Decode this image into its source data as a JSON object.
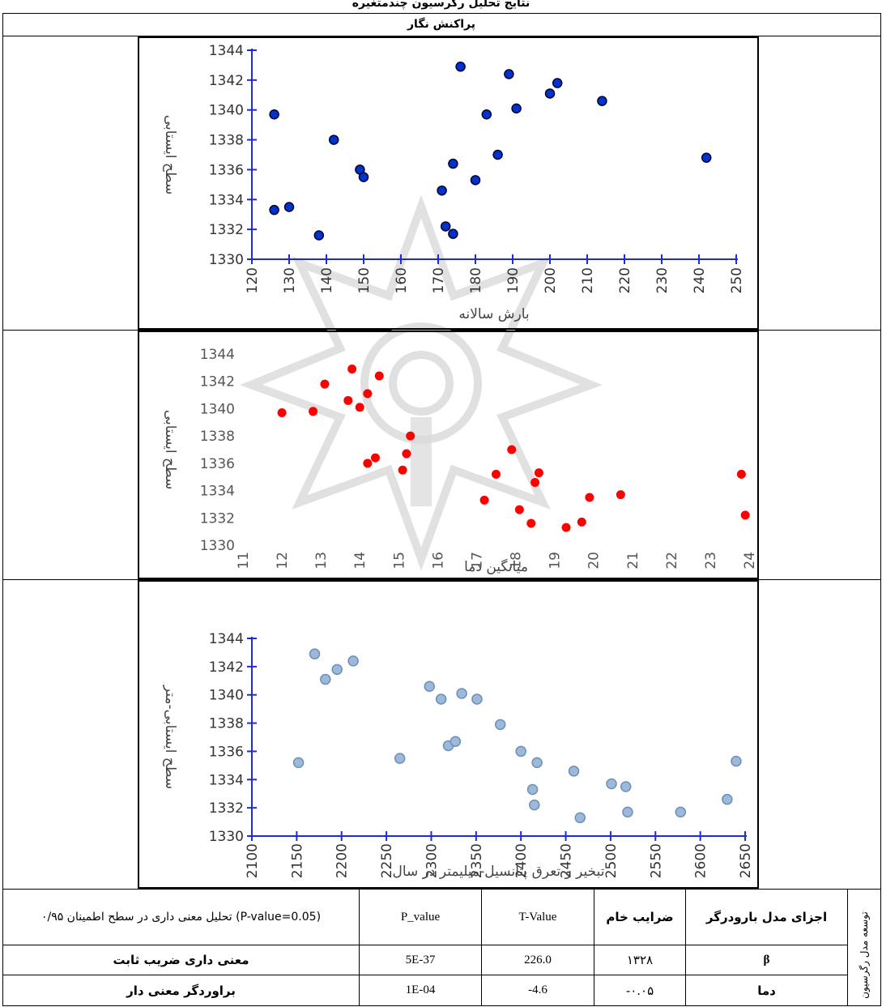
{
  "page": {
    "top_title": "نتایج تحلیل رگرسیون چندمتغیره",
    "section_header": "پراکنش نگار"
  },
  "chart_data": [
    {
      "type": "scatter",
      "xlabel": "بارش سالانه",
      "ylabel": "سطح ایستابی",
      "xlim": [
        120,
        250
      ],
      "ylim": [
        1330,
        1344
      ],
      "x_ticks": [
        120,
        130,
        140,
        150,
        160,
        170,
        180,
        190,
        200,
        210,
        220,
        230,
        240,
        250
      ],
      "y_ticks": [
        1330,
        1332,
        1334,
        1336,
        1338,
        1340,
        1342,
        1344
      ],
      "marker_color": "#0033cc",
      "points": [
        {
          "x": 126,
          "y": 1339.7
        },
        {
          "x": 126,
          "y": 1333.3
        },
        {
          "x": 130,
          "y": 1333.5
        },
        {
          "x": 138,
          "y": 1331.6
        },
        {
          "x": 142,
          "y": 1338.0
        },
        {
          "x": 149,
          "y": 1336.0
        },
        {
          "x": 150,
          "y": 1335.5
        },
        {
          "x": 171,
          "y": 1334.6
        },
        {
          "x": 172,
          "y": 1332.2
        },
        {
          "x": 174,
          "y": 1331.7
        },
        {
          "x": 174,
          "y": 1336.4
        },
        {
          "x": 176,
          "y": 1342.9
        },
        {
          "x": 180,
          "y": 1335.3
        },
        {
          "x": 183,
          "y": 1339.7
        },
        {
          "x": 186,
          "y": 1337.0
        },
        {
          "x": 189,
          "y": 1342.4
        },
        {
          "x": 191,
          "y": 1340.1
        },
        {
          "x": 200,
          "y": 1341.1
        },
        {
          "x": 202,
          "y": 1341.8
        },
        {
          "x": 214,
          "y": 1340.6
        },
        {
          "x": 242,
          "y": 1336.8
        }
      ]
    },
    {
      "type": "scatter",
      "xlabel": "میانگین دما",
      "ylabel": "سطح ایستابی",
      "xlim": [
        11,
        24
      ],
      "ylim": [
        1330,
        1344
      ],
      "x_ticks": [
        11,
        12,
        13,
        14,
        15,
        16,
        17,
        18,
        19,
        20,
        21,
        22,
        23,
        24
      ],
      "y_ticks": [
        1330,
        1332,
        1334,
        1336,
        1338,
        1340,
        1342,
        1344
      ],
      "marker_color": "#ff0000",
      "points": [
        {
          "x": 12.0,
          "y": 1339.7
        },
        {
          "x": 12.8,
          "y": 1339.8
        },
        {
          "x": 13.1,
          "y": 1341.8
        },
        {
          "x": 13.8,
          "y": 1342.9
        },
        {
          "x": 13.7,
          "y": 1340.6
        },
        {
          "x": 14.0,
          "y": 1340.1
        },
        {
          "x": 14.2,
          "y": 1341.1
        },
        {
          "x": 14.5,
          "y": 1342.4
        },
        {
          "x": 14.2,
          "y": 1336.0
        },
        {
          "x": 14.4,
          "y": 1336.4
        },
        {
          "x": 15.1,
          "y": 1335.5
        },
        {
          "x": 15.2,
          "y": 1336.7
        },
        {
          "x": 15.3,
          "y": 1338.0
        },
        {
          "x": 17.2,
          "y": 1333.3
        },
        {
          "x": 17.5,
          "y": 1335.2
        },
        {
          "x": 17.9,
          "y": 1337.0
        },
        {
          "x": 18.1,
          "y": 1332.6
        },
        {
          "x": 18.4,
          "y": 1331.6
        },
        {
          "x": 18.5,
          "y": 1334.6
        },
        {
          "x": 18.6,
          "y": 1335.3
        },
        {
          "x": 19.3,
          "y": 1331.3
        },
        {
          "x": 19.7,
          "y": 1331.7
        },
        {
          "x": 19.9,
          "y": 1333.5
        },
        {
          "x": 20.7,
          "y": 1333.7
        },
        {
          "x": 23.8,
          "y": 1335.2
        },
        {
          "x": 23.9,
          "y": 1332.2
        }
      ]
    },
    {
      "type": "scatter",
      "xlabel": "تبخیر و تعرق پتانسیل-میلیمتر در سال",
      "ylabel": "سطح ایستابی-متر",
      "xlim": [
        2100,
        2650
      ],
      "ylim": [
        1330,
        1344
      ],
      "x_ticks": [
        2100,
        2150,
        2200,
        2250,
        2300,
        2350,
        2400,
        2450,
        2500,
        2550,
        2600,
        2650
      ],
      "y_ticks": [
        1330,
        1332,
        1334,
        1336,
        1338,
        1340,
        1342,
        1344
      ],
      "marker_color": "#9db9d9",
      "points": [
        {
          "x": 2152,
          "y": 1335.2
        },
        {
          "x": 2170,
          "y": 1342.9
        },
        {
          "x": 2182,
          "y": 1341.1
        },
        {
          "x": 2195,
          "y": 1341.8
        },
        {
          "x": 2213,
          "y": 1342.4
        },
        {
          "x": 2265,
          "y": 1335.5
        },
        {
          "x": 2298,
          "y": 1340.6
        },
        {
          "x": 2311,
          "y": 1339.7
        },
        {
          "x": 2319,
          "y": 1336.4
        },
        {
          "x": 2327,
          "y": 1336.7
        },
        {
          "x": 2334,
          "y": 1340.1
        },
        {
          "x": 2351,
          "y": 1339.7
        },
        {
          "x": 2377,
          "y": 1337.9
        },
        {
          "x": 2400,
          "y": 1336.0
        },
        {
          "x": 2413,
          "y": 1333.3
        },
        {
          "x": 2415,
          "y": 1332.2
        },
        {
          "x": 2418,
          "y": 1335.2
        },
        {
          "x": 2459,
          "y": 1334.6
        },
        {
          "x": 2466,
          "y": 1331.3
        },
        {
          "x": 2501,
          "y": 1333.7
        },
        {
          "x": 2517,
          "y": 1333.5
        },
        {
          "x": 2519,
          "y": 1331.7
        },
        {
          "x": 2578,
          "y": 1331.7
        },
        {
          "x": 2630,
          "y": 1332.6
        },
        {
          "x": 2640,
          "y": 1335.3
        }
      ]
    }
  ],
  "table": {
    "side_label": "توسعه مدل رگرسیون",
    "header": {
      "components": "اجزای مدل بارودرگر",
      "raw_coef": "ضرایب خام",
      "t_value": "T-Value",
      "p_value": "P_value",
      "significance": "تحلیل معنی داری در سطح اطمینان ۰/۹۵ (P-value=0.05)"
    },
    "rows": [
      {
        "components": "β",
        "raw_coef": "۱۳۲۸",
        "t_value": "226.0",
        "p_value": "5E-37",
        "significance": "معنی داری ضریب ثابت"
      },
      {
        "components": "دما",
        "raw_coef": "-۰.۰۵",
        "t_value": "-4.6",
        "p_value": "1E-04",
        "significance": "براوردگر معنی دار"
      }
    ]
  }
}
